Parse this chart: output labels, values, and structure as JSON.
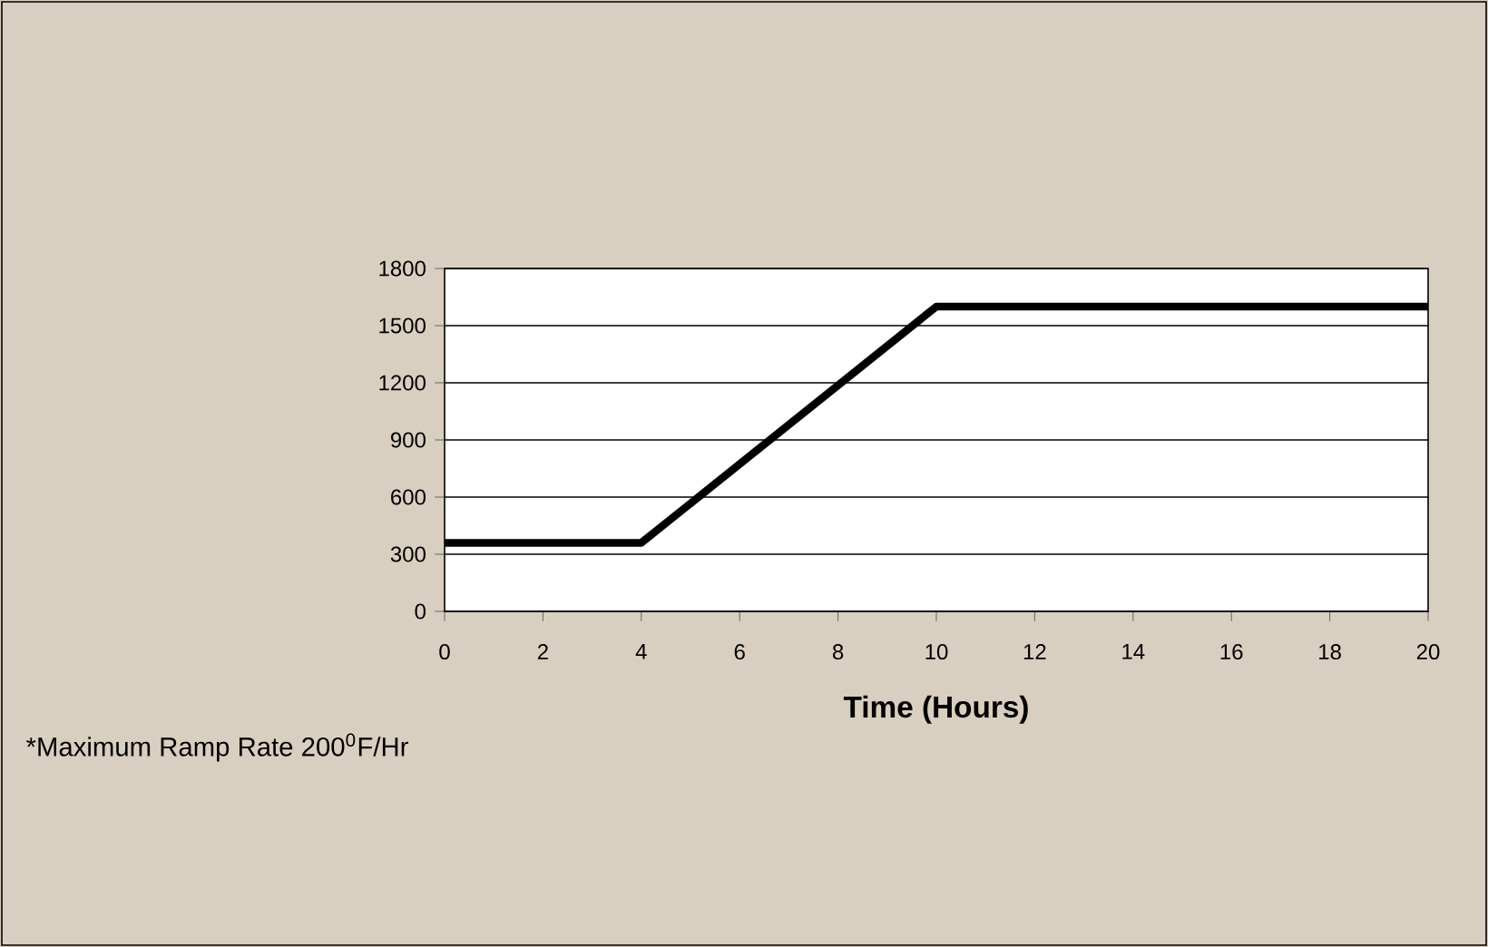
{
  "chart_data": {
    "type": "line",
    "xlabel": "Time (Hours)",
    "x": [
      0,
      4,
      10,
      20
    ],
    "series": [
      {
        "color": "#000000",
        "values": [
          360,
          360,
          1600,
          1600
        ]
      }
    ],
    "xlim": [
      0,
      20
    ],
    "xticks": [
      0,
      2,
      4,
      6,
      8,
      10,
      12,
      14,
      16,
      18,
      20
    ],
    "ylim": [
      0,
      1800
    ],
    "yticks": [
      0,
      300,
      600,
      900,
      1200,
      1500,
      1800
    ],
    "grid": "y",
    "marker": "none",
    "line_style": "solid",
    "annotations": [
      "*Maximum Ramp Rate 200$^{0}$F/Hr"
    ]
  }
}
